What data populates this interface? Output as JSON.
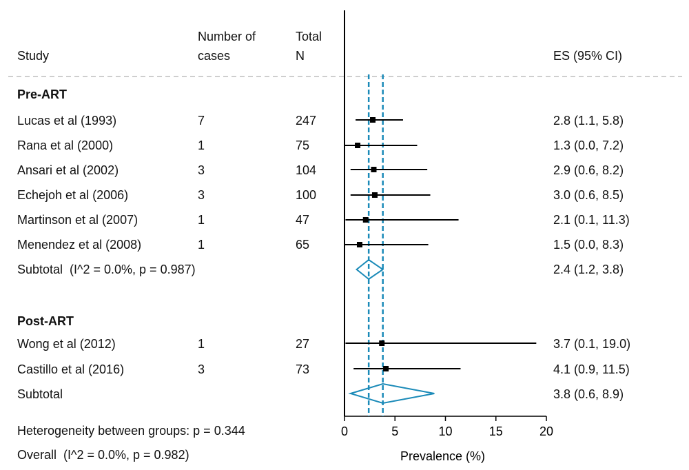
{
  "header": {
    "study": "Study",
    "cases_line1": "Number of",
    "cases_line2": "cases",
    "total_line1": "Total",
    "total_line2": "N",
    "es": "ES (95% CI)"
  },
  "groups": [
    {
      "label": "Pre-ART",
      "subtotal_label": "Subtotal  (I^2 = 0.0%, p = 0.987)",
      "subtotal_es": "2.4 (1.2, 3.8)"
    },
    {
      "label": "Post-ART",
      "subtotal_label": "Subtotal",
      "subtotal_es": "3.8 (0.6, 8.9)"
    }
  ],
  "studies": [
    {
      "name": "Lucas et al (1993)",
      "cases": "7",
      "n": "247",
      "es_text": "2.8 (1.1, 5.8)"
    },
    {
      "name": "Rana et al (2000)",
      "cases": "1",
      "n": "75",
      "es_text": "1.3 (0.0, 7.2)"
    },
    {
      "name": "Ansari et al (2002)",
      "cases": "3",
      "n": "104",
      "es_text": "2.9 (0.6, 8.2)"
    },
    {
      "name": "Echejoh et al (2006)",
      "cases": "3",
      "n": "100",
      "es_text": "3.0 (0.6, 8.5)"
    },
    {
      "name": "Martinson et al (2007)",
      "cases": "1",
      "n": "47",
      "es_text": "2.1 (0.1, 11.3)"
    },
    {
      "name": "Menendez et al (2008)",
      "cases": "1",
      "n": "65",
      "es_text": "1.5 (0.0, 8.3)"
    },
    {
      "name": "Wong et al (2012)",
      "cases": "1",
      "n": "27",
      "es_text": "3.7 (0.1, 19.0)"
    },
    {
      "name": "Castillo et al (2016)",
      "cases": "3",
      "n": "73",
      "es_text": "4.1 (0.9, 11.5)"
    }
  ],
  "footer": {
    "heterogeneity": "Heterogeneity between groups: p = 0.344",
    "overall": "Overall  (I^2 = 0.0%, p = 0.982)"
  },
  "chart_data": {
    "type": "forest",
    "xlabel": "Prevalence (%)",
    "xlim": [
      0,
      20
    ],
    "xticks": [
      0,
      5,
      10,
      15,
      20
    ],
    "colors": {
      "pooled": "#1a8ab8",
      "study": "#000000"
    },
    "studies": [
      {
        "es": 2.8,
        "lo": 1.1,
        "hi": 5.8
      },
      {
        "es": 1.3,
        "lo": 0.0,
        "hi": 7.2
      },
      {
        "es": 2.9,
        "lo": 0.6,
        "hi": 8.2
      },
      {
        "es": 3.0,
        "lo": 0.6,
        "hi": 8.5
      },
      {
        "es": 2.1,
        "lo": 0.1,
        "hi": 11.3
      },
      {
        "es": 1.5,
        "lo": 0.0,
        "hi": 8.3
      },
      {
        "es": 3.7,
        "lo": 0.1,
        "hi": 19.0
      },
      {
        "es": 4.1,
        "lo": 0.9,
        "hi": 11.5
      }
    ],
    "subtotals": [
      {
        "es": 2.4,
        "lo": 1.2,
        "hi": 3.8
      },
      {
        "es": 3.8,
        "lo": 0.6,
        "hi": 8.9
      }
    ],
    "reference_lines": [
      2.4,
      3.8
    ]
  }
}
